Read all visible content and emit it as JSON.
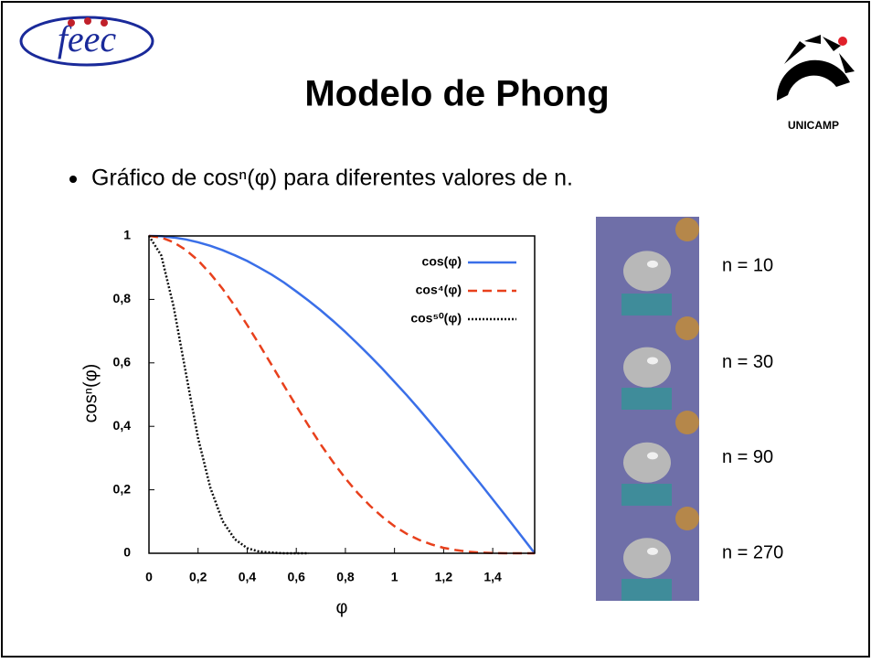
{
  "header": {
    "title": "Modelo de Phong",
    "logo_left": "feec",
    "logo_right": "UNICAMP"
  },
  "bullet": "Gráfico de cosⁿ(φ) para diferentes valores de n.",
  "chart_data": {
    "type": "line",
    "x_label": "φ",
    "y_label": "cosⁿ(φ)",
    "x": [
      0,
      0.05,
      0.1,
      0.15,
      0.2,
      0.25,
      0.3,
      0.35,
      0.4,
      0.45,
      0.5,
      0.55,
      0.6,
      0.65,
      0.7,
      0.75,
      0.8,
      0.85,
      0.9,
      0.95,
      1.0,
      1.05,
      1.1,
      1.15,
      1.2,
      1.25,
      1.3,
      1.35,
      1.4,
      1.45,
      1.5,
      1.55,
      1.5708
    ],
    "series": [
      {
        "name": "cos(φ)",
        "color": "#3a6fe8",
        "style": "solid",
        "values": [
          1,
          0.999,
          0.995,
          0.989,
          0.98,
          0.969,
          0.955,
          0.939,
          0.921,
          0.9,
          0.878,
          0.853,
          0.825,
          0.796,
          0.765,
          0.732,
          0.697,
          0.66,
          0.622,
          0.582,
          0.54,
          0.498,
          0.454,
          0.408,
          0.362,
          0.315,
          0.267,
          0.219,
          0.17,
          0.121,
          0.071,
          0.021,
          0
        ]
      },
      {
        "name": "cos⁴(φ)",
        "color": "#e8401c",
        "style": "dashed",
        "values": [
          1,
          0.995,
          0.98,
          0.956,
          0.923,
          0.881,
          0.833,
          0.779,
          0.719,
          0.657,
          0.593,
          0.528,
          0.464,
          0.402,
          0.342,
          0.287,
          0.236,
          0.19,
          0.15,
          0.115,
          0.085,
          0.061,
          0.042,
          0.028,
          0.017,
          0.01,
          0.005,
          0.002,
          0.001,
          0,
          0,
          0,
          0
        ]
      },
      {
        "name": "cos⁵⁰(φ)",
        "color": "#111111",
        "style": "dotted",
        "values": [
          1,
          0.939,
          0.778,
          0.569,
          0.363,
          0.206,
          0.101,
          0.044,
          0.016,
          0.005,
          0.002,
          0,
          0,
          0,
          null,
          null,
          null,
          null,
          null,
          null,
          null,
          null,
          null,
          null,
          null,
          null,
          null,
          null,
          null,
          null,
          null,
          null,
          null
        ]
      }
    ],
    "xlim": [
      0,
      1.5708
    ],
    "ylim": [
      0,
      1
    ],
    "xticks": [
      0,
      {
        "value": 0.2,
        "label": "0,2"
      },
      {
        "value": 0.4,
        "label": "0,4"
      },
      {
        "value": 0.6,
        "label": "0,6"
      },
      {
        "value": 0.8,
        "label": "0,8"
      },
      1,
      {
        "value": 1.2,
        "label": "1,2"
      },
      {
        "value": 1.4,
        "label": "1,4"
      }
    ],
    "yticks": [
      0,
      {
        "value": 0.2,
        "label": "0,2"
      },
      {
        "value": 0.4,
        "label": "0,4"
      },
      {
        "value": 0.6,
        "label": "0,6"
      },
      {
        "value": 0.8,
        "label": "0,8"
      },
      1
    ],
    "legend": "top-right",
    "grid": false
  },
  "images": [
    {
      "label": "n = 10"
    },
    {
      "label": "n = 30"
    },
    {
      "label": "n = 90"
    },
    {
      "label": "n = 270"
    }
  ]
}
